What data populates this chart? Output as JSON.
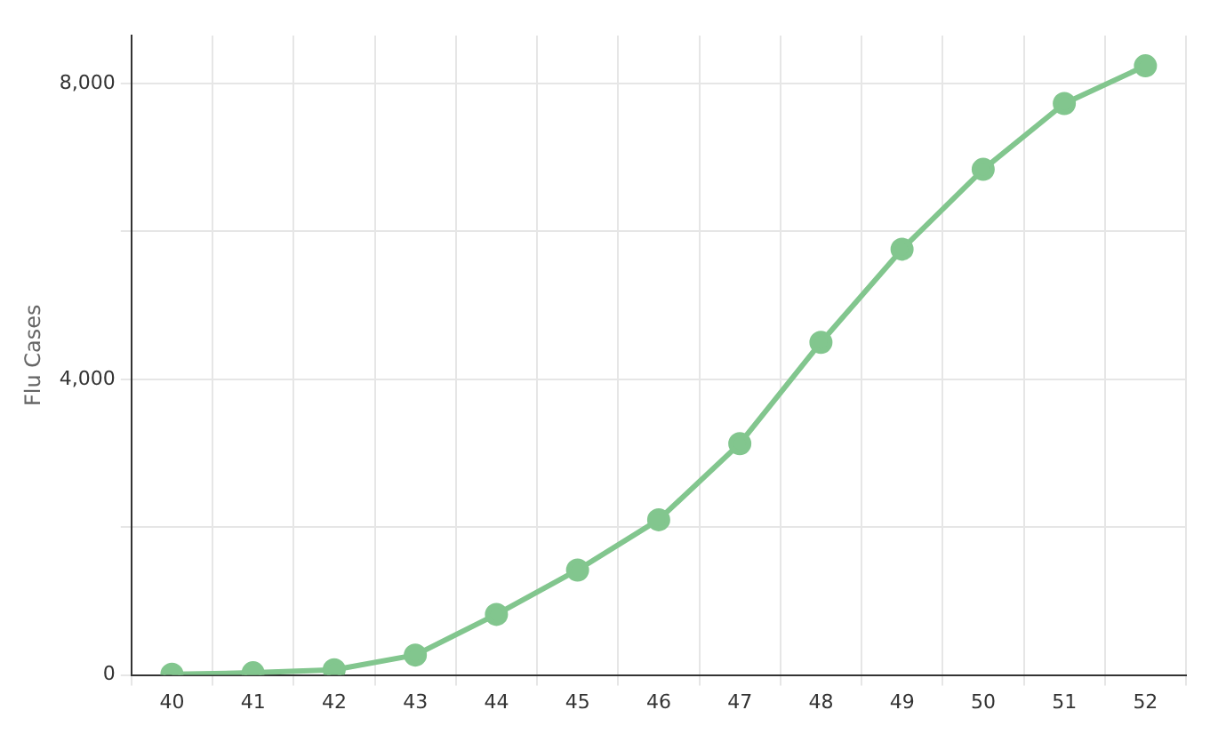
{
  "chart_data": {
    "type": "line",
    "ylabel": "Flu Cases",
    "categories": [
      "40",
      "41",
      "42",
      "43",
      "44",
      "45",
      "46",
      "47",
      "48",
      "49",
      "50",
      "51",
      "52"
    ],
    "series": [
      {
        "color": "#82c68e",
        "values": [
          10,
          30,
          70,
          270,
          820,
          1420,
          2100,
          3130,
          4500,
          5760,
          6840,
          7730,
          8240
        ]
      }
    ],
    "ylim": [
      0,
      8650
    ],
    "yticks": [
      0,
      {
        "value": 2000,
        "label": null
      },
      {
        "value": 4000,
        "label": "4,000"
      },
      {
        "value": 6000,
        "label": null
      },
      {
        "value": 8000,
        "label": "8,000"
      }
    ],
    "grid": true,
    "marker": "circle",
    "line_style": "solid"
  }
}
